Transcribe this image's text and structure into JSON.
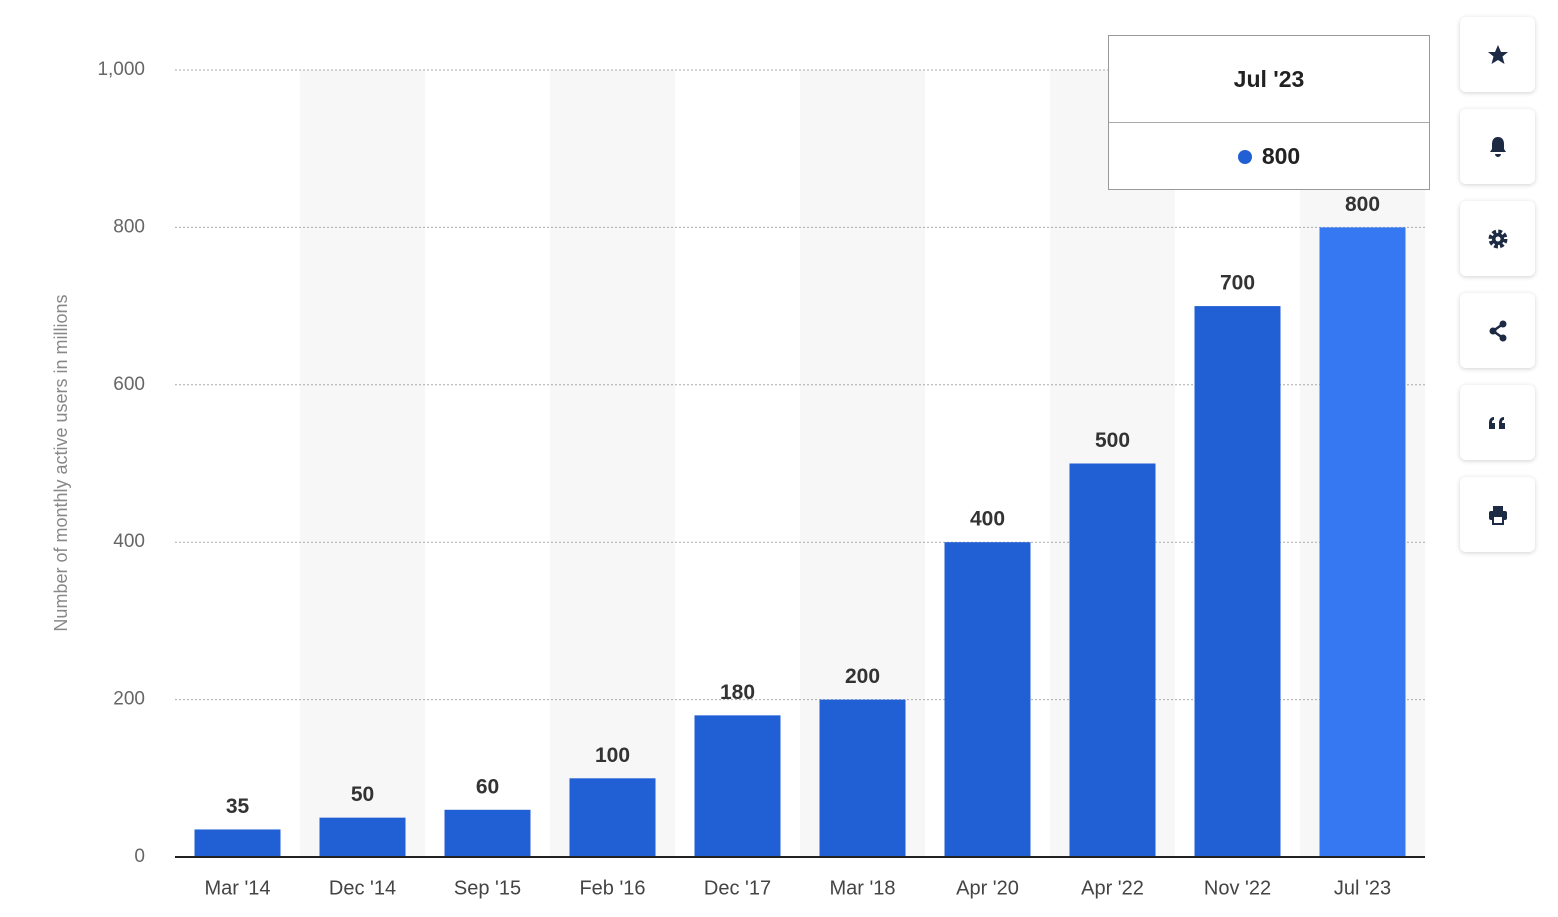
{
  "chart_data": {
    "type": "bar",
    "y_axis_label": "Number of monthly active users in millions",
    "categories": [
      "Mar '14",
      "Dec '14",
      "Sep '15",
      "Feb '16",
      "Dec '17",
      "Mar '18",
      "Apr '20",
      "Apr '22",
      "Nov '22",
      "Jul '23"
    ],
    "values": [
      35,
      50,
      60,
      100,
      180,
      200,
      400,
      500,
      700,
      800
    ],
    "colors": [
      "#215fd5",
      "#215fd5",
      "#215fd5",
      "#215fd5",
      "#215fd5",
      "#215fd5",
      "#215fd5",
      "#215fd5",
      "#215fd5",
      "#3578f2"
    ],
    "ylim": [
      0,
      1000
    ],
    "yticks": [
      0,
      200,
      400,
      600,
      800,
      {
        "value": 1000,
        "label": "1,000"
      }
    ],
    "grid": true
  }
}
